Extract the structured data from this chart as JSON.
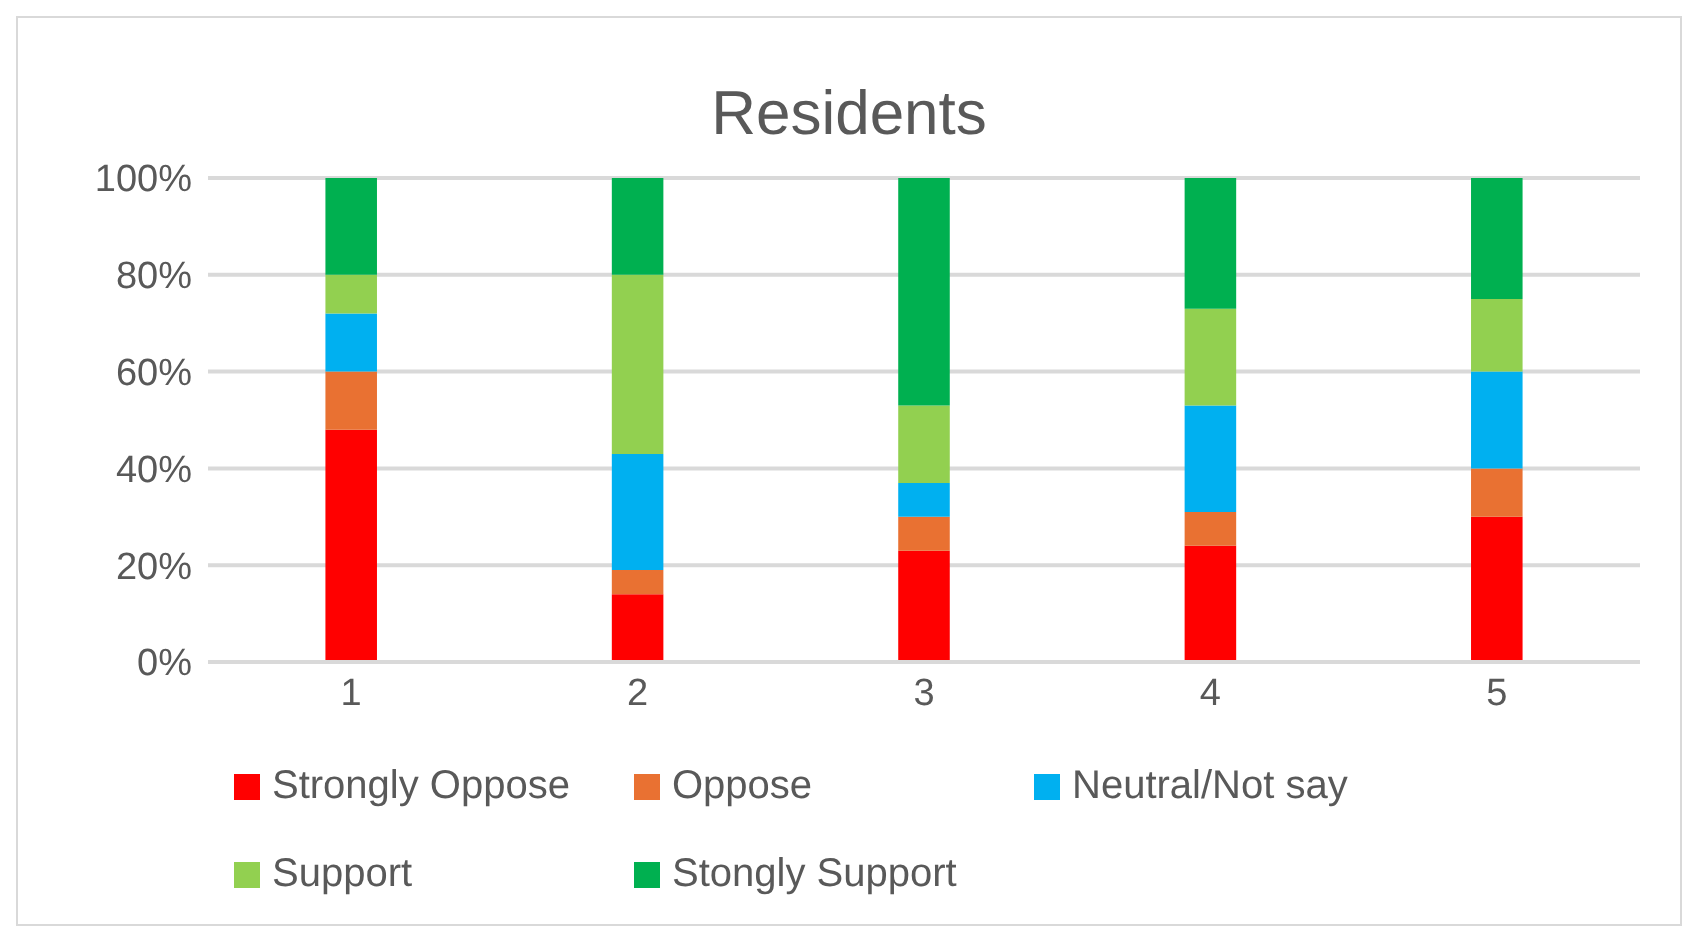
{
  "chart_data": {
    "type": "bar",
    "stacked": true,
    "title": "Residents",
    "categories": [
      "1",
      "2",
      "3",
      "4",
      "5"
    ],
    "series": [
      {
        "name": "Strongly Oppose",
        "color": "#ff0000",
        "values": [
          48,
          14,
          23,
          24,
          30
        ]
      },
      {
        "name": "Oppose",
        "color": "#e97132",
        "values": [
          12,
          5,
          7,
          7,
          10
        ]
      },
      {
        "name": "Neutral/Not say",
        "color": "#00b0f0",
        "values": [
          12,
          24,
          7,
          22,
          20
        ]
      },
      {
        "name": "Support",
        "color": "#92d050",
        "values": [
          8,
          37,
          16,
          20,
          15
        ]
      },
      {
        "name": "Stongly Support",
        "color": "#00b050",
        "values": [
          20,
          20,
          47,
          27,
          25
        ]
      }
    ],
    "ylim": [
      0,
      100
    ],
    "yticks": [
      {
        "value": 0,
        "label": "0%"
      },
      {
        "value": 20,
        "label": "20%"
      },
      {
        "value": 40,
        "label": "40%"
      },
      {
        "value": 60,
        "label": "60%"
      },
      {
        "value": 80,
        "label": "80%"
      },
      {
        "value": 100,
        "label": "100%"
      }
    ],
    "grid": "y",
    "legend": "bottom"
  }
}
